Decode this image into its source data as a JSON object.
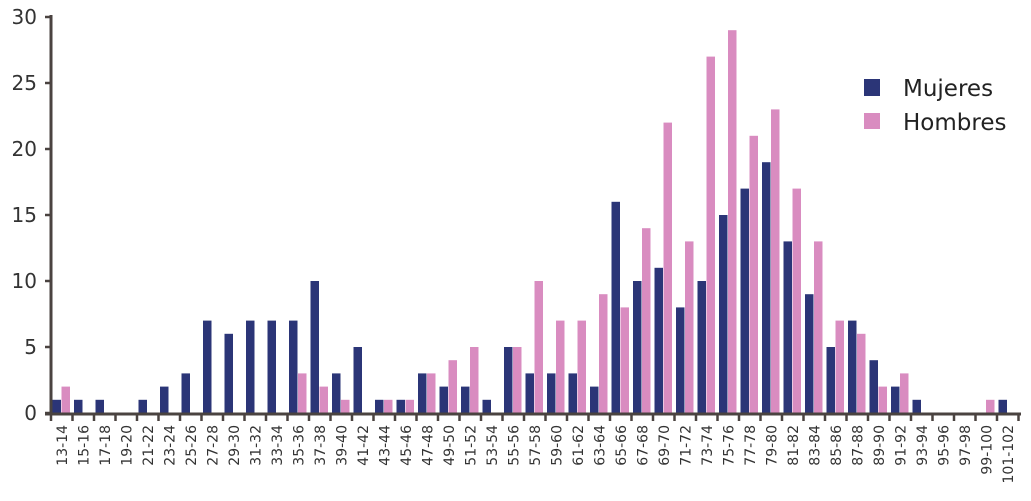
{
  "chart_data": {
    "type": "bar",
    "categories": [
      "13-14",
      "15-16",
      "17-18",
      "19-20",
      "21-22",
      "23-24",
      "25-26",
      "27-28",
      "29-30",
      "31-32",
      "33-34",
      "35-36",
      "37-38",
      "39-40",
      "41-42",
      "43-44",
      "45-46",
      "47-48",
      "49-50",
      "51-52",
      "53-54",
      "55-56",
      "57-58",
      "59-60",
      "61-62",
      "63-64",
      "65-66",
      "67-68",
      "69-70",
      "71-72",
      "73-74",
      "75-76",
      "77-78",
      "79-80",
      "81-82",
      "83-84",
      "85-86",
      "87-88",
      "89-90",
      "91-92",
      "93-94",
      "95-96",
      "97-98",
      "99-100",
      "101-102"
    ],
    "series": [
      {
        "name": "Mujeres",
        "color": "#2b3577",
        "values": [
          1,
          1,
          1,
          0,
          1,
          2,
          3,
          7,
          6,
          7,
          7,
          7,
          10,
          3,
          5,
          1,
          1,
          3,
          2,
          2,
          1,
          5,
          3,
          3,
          3,
          2,
          16,
          10,
          11,
          8,
          10,
          15,
          17,
          19,
          13,
          9,
          5,
          7,
          4,
          2,
          1,
          0,
          0,
          0,
          1
        ]
      },
      {
        "name": "Hombres",
        "color": "#d98cc0",
        "values": [
          2,
          0,
          0,
          0,
          0,
          0,
          0,
          0,
          0,
          0,
          0,
          3,
          2,
          1,
          0,
          1,
          1,
          3,
          4,
          5,
          0,
          5,
          10,
          7,
          7,
          9,
          8,
          14,
          22,
          13,
          27,
          29,
          21,
          23,
          17,
          13,
          7,
          6,
          2,
          3,
          0,
          0,
          0,
          1,
          0
        ]
      }
    ],
    "yticks": [
      "0",
      "5",
      "10",
      "15",
      "20",
      "25",
      "30"
    ],
    "ylim": [
      0,
      30
    ],
    "title": "",
    "xlabel": "",
    "ylabel": "",
    "grid": false,
    "legend_position": "top-right"
  }
}
